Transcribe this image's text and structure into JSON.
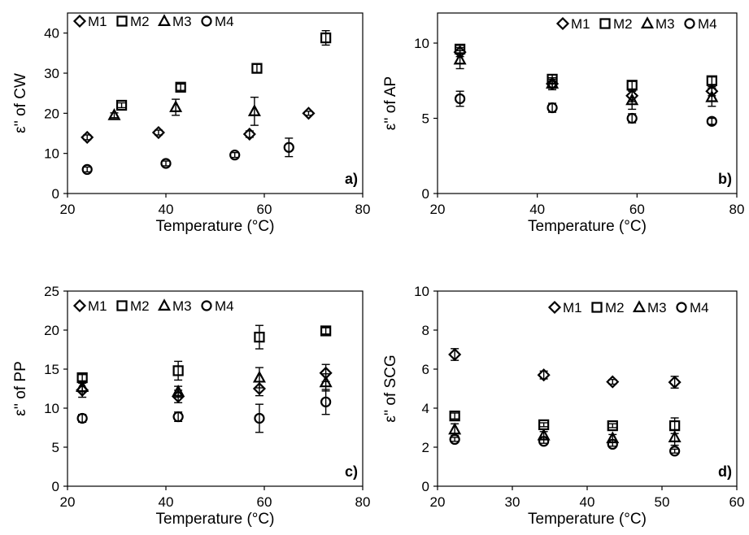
{
  "chart_data": [
    {
      "type": "scatter",
      "panel_label": "a)",
      "xlabel": "Temperature (°C)",
      "ylabel": "ε'' of CW",
      "xlim": [
        20,
        80
      ],
      "ylim": [
        0,
        45
      ],
      "xticks": [
        20,
        40,
        60,
        80
      ],
      "yticks": [
        0,
        10,
        20,
        30,
        40
      ],
      "grid": false,
      "legend_placement": "top-left",
      "series": [
        {
          "name": "M1",
          "marker": "diamond",
          "points": [
            {
              "x": 24,
              "y": 14,
              "err": 0.6
            },
            {
              "x": 38.5,
              "y": 15.2,
              "err": 0.6
            },
            {
              "x": 57,
              "y": 14.8,
              "err": 0.8
            },
            {
              "x": 69,
              "y": 20,
              "err": 0.5
            }
          ]
        },
        {
          "name": "M2",
          "marker": "square",
          "points": [
            {
              "x": 31,
              "y": 22,
              "err": 0.6
            },
            {
              "x": 43,
              "y": 26.5,
              "err": 0.8
            },
            {
              "x": 58.5,
              "y": 31.2,
              "err": 1.0
            },
            {
              "x": 72.5,
              "y": 38.8,
              "err": 1.8
            }
          ]
        },
        {
          "name": "M3",
          "marker": "triangle",
          "points": [
            {
              "x": 29.5,
              "y": 19.5,
              "err": 0.6
            },
            {
              "x": 42,
              "y": 21.5,
              "err": 2.0
            },
            {
              "x": 58,
              "y": 20.5,
              "err": 3.5
            }
          ]
        },
        {
          "name": "M4",
          "marker": "circle",
          "points": [
            {
              "x": 24,
              "y": 6,
              "err": 0.6
            },
            {
              "x": 40,
              "y": 7.5,
              "err": 0.6
            },
            {
              "x": 54,
              "y": 9.6,
              "err": 0.6
            },
            {
              "x": 65,
              "y": 11.5,
              "err": 2.3
            }
          ]
        }
      ]
    },
    {
      "type": "scatter",
      "panel_label": "b)",
      "xlabel": "Temperature (°C)",
      "ylabel": "ε'' of AP",
      "xlim": [
        20,
        80
      ],
      "ylim": [
        0,
        12
      ],
      "xticks": [
        20,
        40,
        60,
        80
      ],
      "yticks": [
        0,
        5,
        10
      ],
      "grid": false,
      "legend_placement": "top-right",
      "series": [
        {
          "name": "M1",
          "marker": "diamond",
          "points": [
            {
              "x": 24.5,
              "y": 9.4,
              "err": 0.3
            },
            {
              "x": 43,
              "y": 7.3,
              "err": 0.3
            },
            {
              "x": 59,
              "y": 6.5,
              "err": 0.4
            },
            {
              "x": 75,
              "y": 6.8,
              "err": 0.3
            }
          ]
        },
        {
          "name": "M2",
          "marker": "square",
          "points": [
            {
              "x": 24.5,
              "y": 9.6,
              "err": 0.25
            },
            {
              "x": 43,
              "y": 7.6,
              "err": 0.3
            },
            {
              "x": 59,
              "y": 7.2,
              "err": 0.25
            },
            {
              "x": 75,
              "y": 7.5,
              "err": 0.25
            }
          ]
        },
        {
          "name": "M3",
          "marker": "triangle",
          "points": [
            {
              "x": 24.5,
              "y": 8.9,
              "err": 0.6
            },
            {
              "x": 43,
              "y": 7.3,
              "err": 0.4
            },
            {
              "x": 59,
              "y": 6.2,
              "err": 0.6
            },
            {
              "x": 75,
              "y": 6.4,
              "err": 0.6
            }
          ]
        },
        {
          "name": "M4",
          "marker": "circle",
          "points": [
            {
              "x": 24.5,
              "y": 6.3,
              "err": 0.5
            },
            {
              "x": 43,
              "y": 5.7,
              "err": 0.3
            },
            {
              "x": 59,
              "y": 5.0,
              "err": 0.3
            },
            {
              "x": 75,
              "y": 4.8,
              "err": 0.2
            }
          ]
        }
      ]
    },
    {
      "type": "scatter",
      "panel_label": "c)",
      "xlabel": "Temperature (°C)",
      "ylabel": "ε'' of PP",
      "xlim": [
        20,
        80
      ],
      "ylim": [
        0,
        25
      ],
      "xticks": [
        20,
        40,
        60,
        80
      ],
      "yticks": [
        0,
        5,
        10,
        15,
        20,
        25
      ],
      "grid": false,
      "legend_placement": "top-left",
      "series": [
        {
          "name": "M1",
          "marker": "diamond",
          "points": [
            {
              "x": 23,
              "y": 12.3,
              "err": 0.9
            },
            {
              "x": 42.5,
              "y": 11.5,
              "err": 0.8
            },
            {
              "x": 59,
              "y": 12.5,
              "err": 0.9
            },
            {
              "x": 72.5,
              "y": 14.5,
              "err": 1.1
            }
          ]
        },
        {
          "name": "M2",
          "marker": "square",
          "points": [
            {
              "x": 23,
              "y": 13.9,
              "err": 0.4
            },
            {
              "x": 42.5,
              "y": 14.8,
              "err": 1.2
            },
            {
              "x": 59,
              "y": 19.1,
              "err": 1.5
            },
            {
              "x": 72.5,
              "y": 19.9,
              "err": 0.4
            }
          ]
        },
        {
          "name": "M3",
          "marker": "triangle",
          "points": [
            {
              "x": 23,
              "y": 12.7,
              "err": 0.6
            },
            {
              "x": 42.5,
              "y": 12.1,
              "err": 0.7
            },
            {
              "x": 59,
              "y": 13.9,
              "err": 1.3
            },
            {
              "x": 72.5,
              "y": 13.3,
              "err": 1.1
            }
          ]
        },
        {
          "name": "M4",
          "marker": "circle",
          "points": [
            {
              "x": 23,
              "y": 8.7,
              "err": 0.5
            },
            {
              "x": 42.5,
              "y": 8.9,
              "err": 0.6
            },
            {
              "x": 59,
              "y": 8.7,
              "err": 1.8
            },
            {
              "x": 72.5,
              "y": 10.8,
              "err": 1.6
            }
          ]
        }
      ]
    },
    {
      "type": "scatter",
      "panel_label": "d)",
      "xlabel": "Temperature (°C)",
      "ylabel": "ε'' of SCG",
      "xlim": [
        20,
        60
      ],
      "ylim": [
        0,
        10
      ],
      "xticks": [
        20,
        30,
        40,
        50,
        60
      ],
      "yticks": [
        0,
        2,
        4,
        6,
        8,
        10
      ],
      "grid": false,
      "legend_placement": "top-right",
      "series": [
        {
          "name": "M1",
          "marker": "diamond",
          "points": [
            {
              "x": 22.3,
              "y": 6.75,
              "err": 0.3
            },
            {
              "x": 34.2,
              "y": 5.7,
              "err": 0.2
            },
            {
              "x": 43.4,
              "y": 5.35,
              "err": 0.12
            },
            {
              "x": 51.7,
              "y": 5.33,
              "err": 0.3
            }
          ]
        },
        {
          "name": "M2",
          "marker": "square",
          "points": [
            {
              "x": 22.3,
              "y": 3.6,
              "err": 0.15
            },
            {
              "x": 34.2,
              "y": 3.15,
              "err": 0.1
            },
            {
              "x": 43.4,
              "y": 3.1,
              "err": 0.1
            },
            {
              "x": 51.7,
              "y": 3.1,
              "err": 0.4
            }
          ]
        },
        {
          "name": "M3",
          "marker": "triangle",
          "points": [
            {
              "x": 22.3,
              "y": 2.9,
              "err": 0.3
            },
            {
              "x": 34.2,
              "y": 2.6,
              "err": 0.2
            },
            {
              "x": 43.4,
              "y": 2.45,
              "err": 0.2
            },
            {
              "x": 51.7,
              "y": 2.5,
              "err": 0.4
            }
          ]
        },
        {
          "name": "M4",
          "marker": "circle",
          "points": [
            {
              "x": 22.3,
              "y": 2.4,
              "err": 0.1
            },
            {
              "x": 34.2,
              "y": 2.3,
              "err": 0.1
            },
            {
              "x": 43.4,
              "y": 2.15,
              "err": 0.1
            },
            {
              "x": 51.7,
              "y": 1.8,
              "err": 0.1
            }
          ]
        }
      ]
    }
  ]
}
